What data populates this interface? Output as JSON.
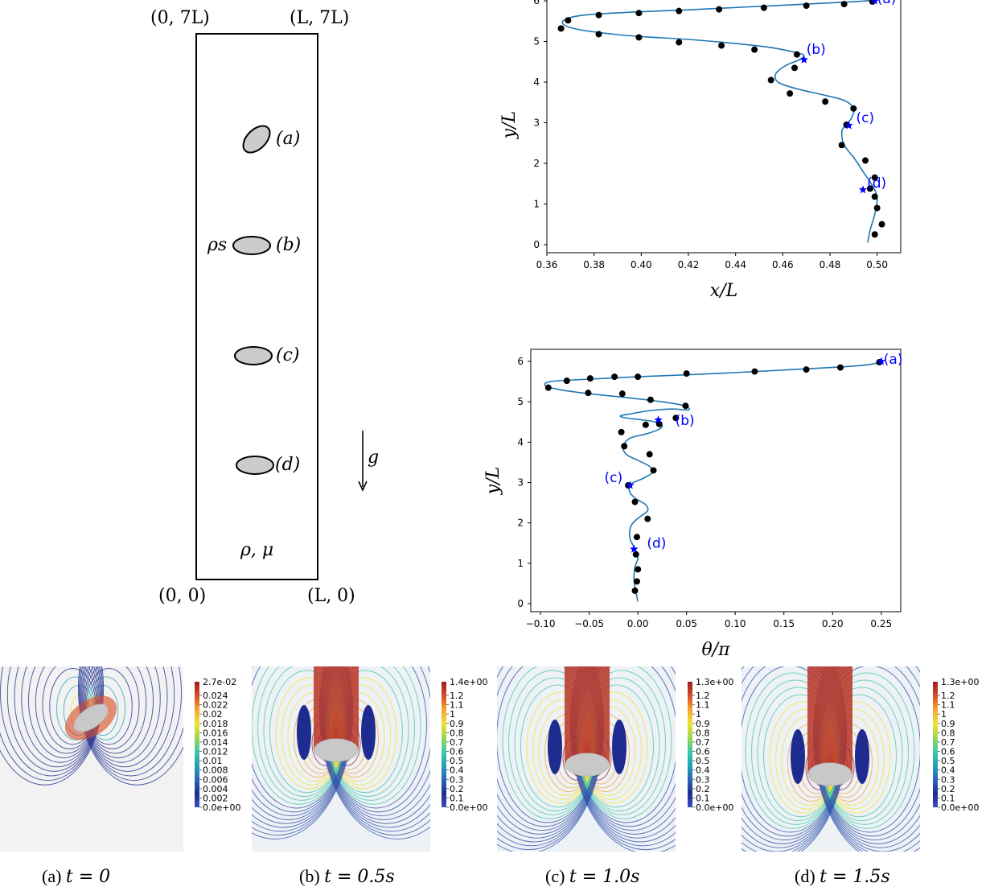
{
  "schematic": {
    "corner_top_left": "(0, 7L)",
    "corner_top_right": "(L, 7L)",
    "corner_bottom_left": "(0, 0)",
    "corner_bottom_right": "(L, 0)",
    "label_a": "(a)",
    "label_b": "(b)",
    "label_c": "(c)",
    "label_d": "(d)",
    "density_solid": "ρs",
    "gravity": "g",
    "fluid_props": "ρ, μ",
    "colors": {
      "ellipse_fill": "#cccccc",
      "stroke": "#000000"
    }
  },
  "chart_data": [
    {
      "type": "line",
      "xlabel": "x/L",
      "ylabel": "y/L",
      "xlim": [
        0.36,
        0.51
      ],
      "ylim": [
        -0.2,
        6.1
      ],
      "xticks": [
        "0.36",
        "0.38",
        "0.40",
        "0.42",
        "0.44",
        "0.46",
        "0.48",
        "0.50"
      ],
      "yticks": [
        "0",
        "1",
        "2",
        "3",
        "4",
        "5",
        "6"
      ],
      "curve": {
        "x": [
          0.496,
          0.497,
          0.499,
          0.5,
          0.498,
          0.494,
          0.49,
          0.486,
          0.485,
          0.486,
          0.489,
          0.49,
          0.486,
          0.476,
          0.465,
          0.458,
          0.457,
          0.461,
          0.467,
          0.469,
          0.466,
          0.455,
          0.44,
          0.42,
          0.4,
          0.385,
          0.373,
          0.367,
          0.368,
          0.376,
          0.395,
          0.42,
          0.445,
          0.47,
          0.49,
          0.5
        ],
        "y": [
          0.05,
          0.35,
          0.75,
          1.15,
          1.45,
          1.8,
          2.15,
          2.45,
          2.75,
          2.9,
          3.1,
          3.35,
          3.55,
          3.7,
          3.85,
          4.0,
          4.2,
          4.4,
          4.55,
          4.65,
          4.72,
          4.85,
          4.95,
          5.05,
          5.12,
          5.2,
          5.3,
          5.42,
          5.55,
          5.65,
          5.72,
          5.78,
          5.85,
          5.92,
          5.98,
          6.02
        ]
      },
      "points": {
        "x": [
          0.499,
          0.502,
          0.5,
          0.499,
          0.497,
          0.499,
          0.495,
          0.485,
          0.487,
          0.49,
          0.478,
          0.463,
          0.455,
          0.465,
          0.466,
          0.448,
          0.434,
          0.416,
          0.399,
          0.382,
          0.366,
          0.369,
          0.382,
          0.399,
          0.416,
          0.433,
          0.452,
          0.47,
          0.486,
          0.498
        ],
        "y": [
          0.25,
          0.5,
          0.9,
          1.18,
          1.38,
          1.65,
          2.07,
          2.45,
          2.95,
          3.35,
          3.52,
          3.72,
          4.05,
          4.35,
          4.68,
          4.8,
          4.9,
          4.98,
          5.1,
          5.18,
          5.32,
          5.52,
          5.65,
          5.7,
          5.75,
          5.79,
          5.83,
          5.88,
          5.92,
          5.98
        ]
      },
      "markers": [
        {
          "label": "(a)",
          "x": 0.499,
          "y": 6.0
        },
        {
          "label": "(b)",
          "x": 0.469,
          "y": 4.55
        },
        {
          "label": "(c)",
          "x": 0.488,
          "y": 2.93
        },
        {
          "label": "(d)",
          "x": 0.494,
          "y": 1.35
        }
      ],
      "colors": {
        "curve": "#1f77b4",
        "points": "#000000",
        "markers": "#0000ff"
      }
    },
    {
      "type": "line",
      "xlabel": "θ/π",
      "ylabel": "y/L",
      "xlim": [
        -0.11,
        0.27
      ],
      "ylim": [
        -0.2,
        6.3
      ],
      "xticks": [
        "−0.10",
        "−0.05",
        "0.00",
        "0.05",
        "0.10",
        "0.15",
        "0.20",
        "0.25"
      ],
      "yticks": [
        "0",
        "1",
        "2",
        "3",
        "4",
        "5",
        "6"
      ],
      "curve": {
        "x": [
          0.0,
          -0.002,
          -0.004,
          -0.003,
          0.0,
          -0.004,
          -0.008,
          -0.008,
          -0.005,
          0.002,
          0.01,
          0.008,
          -0.002,
          -0.008,
          -0.008,
          0.005,
          0.015,
          0.012,
          0.0,
          -0.012,
          -0.015,
          -0.008,
          0.008,
          0.02,
          0.025,
          0.018,
          0.005,
          -0.012,
          -0.018,
          -0.008,
          0.012,
          0.035,
          0.052,
          0.048,
          0.025,
          -0.01,
          -0.05,
          -0.08,
          -0.095,
          -0.09,
          -0.06,
          0.0,
          0.08,
          0.16,
          0.23,
          0.252
        ],
        "y": [
          0.05,
          0.3,
          0.6,
          0.9,
          1.15,
          1.4,
          1.6,
          1.85,
          2.0,
          2.15,
          2.3,
          2.45,
          2.6,
          2.75,
          2.95,
          3.1,
          3.25,
          3.4,
          3.55,
          3.7,
          3.9,
          4.1,
          4.2,
          4.3,
          4.4,
          4.5,
          4.55,
          4.6,
          4.65,
          4.7,
          4.78,
          4.82,
          4.8,
          4.9,
          5.0,
          5.1,
          5.2,
          5.3,
          5.4,
          5.5,
          5.55,
          5.62,
          5.7,
          5.8,
          5.9,
          6.0
        ]
      },
      "points": {
        "x": [
          -0.003,
          -0.001,
          0.0,
          -0.002,
          -0.001,
          0.01,
          -0.003,
          -0.01,
          0.016,
          0.012,
          -0.014,
          -0.017,
          0.008,
          0.022,
          0.039,
          0.049,
          0.013,
          -0.016,
          -0.051,
          -0.092,
          -0.073,
          -0.049,
          -0.024,
          0.0,
          0.05,
          0.12,
          0.173,
          0.208,
          0.248
        ],
        "y": [
          0.32,
          0.55,
          0.85,
          1.22,
          1.65,
          2.1,
          2.52,
          2.93,
          3.3,
          3.7,
          3.9,
          4.25,
          4.43,
          4.45,
          4.6,
          4.9,
          5.05,
          5.2,
          5.22,
          5.35,
          5.52,
          5.58,
          5.62,
          5.62,
          5.7,
          5.75,
          5.8,
          5.85,
          5.98
        ]
      },
      "markers": [
        {
          "label": "(a)",
          "x": 0.25,
          "y": 6.0
        },
        {
          "label": "(b)",
          "x": 0.021,
          "y": 4.55
        },
        {
          "label": "(c)",
          "x": -0.008,
          "y": 2.93
        },
        {
          "label": "(d)",
          "x": -0.004,
          "y": 1.35
        }
      ],
      "colors": {
        "curve": "#1f77b4",
        "points": "#000000",
        "markers": "#0000ff"
      }
    }
  ],
  "fields": [
    {
      "max_label": "2.7e-02",
      "ticks": [
        "0.024",
        "0.022",
        "0.02",
        "0.018",
        "0.016",
        "0.014",
        "0.012",
        "0.01",
        "0.008",
        "0.006",
        "0.004",
        "0.002",
        "0.0e+00"
      ],
      "caption_prefix": "(a) ",
      "caption_math": "t = 0"
    },
    {
      "max_label": "1.4e+00",
      "ticks": [
        "1.2",
        "1.1",
        "1",
        "0.9",
        "0.8",
        "0.7",
        "0.6",
        "0.5",
        "0.4",
        "0.3",
        "0.2",
        "0.1",
        "0.0e+00"
      ],
      "caption_prefix": "(b) ",
      "caption_math": "t = 0.5s"
    },
    {
      "max_label": "1.3e+00",
      "ticks": [
        "1.2",
        "1.1",
        "1",
        "0.9",
        "0.8",
        "0.7",
        "0.6",
        "0.5",
        "0.4",
        "0.3",
        "0.2",
        "0.1",
        "0.0e+00"
      ],
      "caption_prefix": "(c) ",
      "caption_math": "t = 1.0s"
    },
    {
      "max_label": "1.3e+00",
      "ticks": [
        "1.2",
        "1.1",
        "1",
        "0.9",
        "0.8",
        "0.7",
        "0.6",
        "0.5",
        "0.4",
        "0.3",
        "0.2",
        "0.1",
        "0.0e+00"
      ],
      "caption_prefix": "(d) ",
      "caption_math": "t = 1.5s"
    }
  ]
}
